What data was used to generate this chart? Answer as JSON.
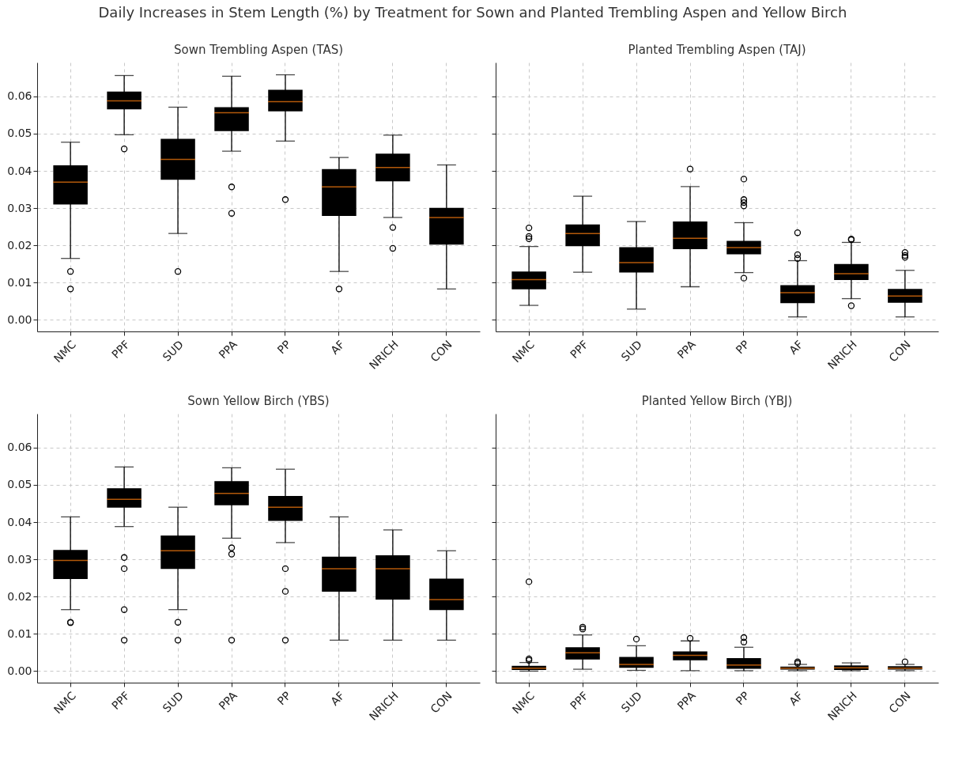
{
  "chart_data": [
    {
      "type": "box",
      "title": "Sown Trembling Aspen (TAS)",
      "annotations": [
        "Daily Increases in Stem Length (%) by Treatment for Sown and Planted Trembling Aspen and Yellow Birch"
      ],
      "color": "#000000",
      "categories": [
        "NMC",
        "PPF",
        "SUD",
        "PPA",
        "PP",
        "AF",
        "NRICH",
        "CON"
      ],
      "ylim": [
        -0.0031,
        0.0691
      ],
      "yticks": [
        {
          "value": 0,
          "label": "0.00"
        },
        0.01,
        0.02,
        0.03,
        0.04,
        0.05,
        0.06
      ],
      "grid": true,
      "marker": "circle",
      "boxes": [
        {
          "low": 0.0165,
          "q1": 0.031,
          "median": 0.037,
          "q3": 0.0415,
          "high": 0.0477,
          "outliers": [
            0.013,
            0.0083
          ]
        },
        {
          "low": 0.0497,
          "q1": 0.0565,
          "median": 0.0588,
          "q3": 0.0613,
          "high": 0.0656,
          "outliers": [
            0.0459
          ]
        },
        {
          "low": 0.0232,
          "q1": 0.0376,
          "median": 0.0431,
          "q3": 0.0486,
          "high": 0.0571,
          "outliers": [
            0.013
          ]
        },
        {
          "low": 0.0453,
          "q1": 0.0507,
          "median": 0.0556,
          "q3": 0.0571,
          "high": 0.0654,
          "outliers": [
            0.0357,
            0.0286
          ]
        },
        {
          "low": 0.048,
          "q1": 0.056,
          "median": 0.0586,
          "q3": 0.0618,
          "high": 0.0658,
          "outliers": [
            0.0323
          ]
        },
        {
          "low": 0.013,
          "q1": 0.0279,
          "median": 0.0357,
          "q3": 0.0405,
          "high": 0.0436,
          "outliers": [
            0.0083
          ]
        },
        {
          "low": 0.0275,
          "q1": 0.0372,
          "median": 0.0409,
          "q3": 0.0446,
          "high": 0.0496,
          "outliers": [
            0.0248,
            0.0192
          ]
        },
        {
          "low": 0.0083,
          "q1": 0.0202,
          "median": 0.0275,
          "q3": 0.0301,
          "high": 0.0416
        }
      ]
    },
    {
      "type": "box",
      "title": "Planted Trembling Aspen (TAJ)",
      "color": "#000000",
      "categories": [
        "NMC",
        "PPF",
        "SUD",
        "PPA",
        "PP",
        "AF",
        "NRICH",
        "CON"
      ],
      "ylim": [
        -0.0031,
        0.0691
      ],
      "yticks": [
        0,
        0.01,
        0.02,
        0.03,
        0.04,
        0.05,
        0.06
      ],
      "grid": true,
      "marker": "circle",
      "tick_labels": "x",
      "boxes": [
        {
          "low": 0.0039,
          "q1": 0.0082,
          "median": 0.0108,
          "q3": 0.013,
          "high": 0.0197,
          "outliers": [
            0.0247,
            0.0224,
            0.0218
          ]
        },
        {
          "low": 0.0128,
          "q1": 0.0198,
          "median": 0.0232,
          "q3": 0.0256,
          "high": 0.0332
        },
        {
          "low": 0.0029,
          "q1": 0.0127,
          "median": 0.0154,
          "q3": 0.0195,
          "high": 0.0264
        },
        {
          "low": 0.0089,
          "q1": 0.019,
          "median": 0.0219,
          "q3": 0.0264,
          "high": 0.0358,
          "outliers": [
            0.0405
          ]
        },
        {
          "low": 0.0127,
          "q1": 0.0176,
          "median": 0.0194,
          "q3": 0.0212,
          "high": 0.0261,
          "outliers": [
            0.0378,
            0.0323,
            0.0315,
            0.0306,
            0.0112
          ]
        },
        {
          "low": 0.0008,
          "q1": 0.0045,
          "median": 0.0073,
          "q3": 0.0093,
          "high": 0.0159,
          "outliers": [
            0.0234,
            0.0175,
            0.0165
          ]
        },
        {
          "low": 0.0057,
          "q1": 0.0107,
          "median": 0.0124,
          "q3": 0.015,
          "high": 0.0208,
          "outliers": [
            0.0217,
            0.0215,
            0.0038
          ]
        },
        {
          "low": 0.0008,
          "q1": 0.0046,
          "median": 0.0064,
          "q3": 0.0083,
          "high": 0.0133,
          "outliers": [
            0.0181,
            0.0173,
            0.0168
          ]
        }
      ]
    },
    {
      "type": "box",
      "title": "Sown Yellow Birch (YBS)",
      "color": "#000000",
      "categories": [
        "NMC",
        "PPF",
        "SUD",
        "PPA",
        "PP",
        "AF",
        "NRICH",
        "CON"
      ],
      "ylim": [
        -0.0031,
        0.0691
      ],
      "yticks": [
        {
          "value": 0,
          "label": "0.00"
        },
        0.01,
        0.02,
        0.03,
        0.04,
        0.05,
        0.06
      ],
      "grid": true,
      "marker": "circle",
      "boxes": [
        {
          "low": 0.0165,
          "q1": 0.0247,
          "median": 0.0297,
          "q3": 0.0325,
          "high": 0.0414,
          "outliers": [
            0.0131,
            0.013
          ]
        },
        {
          "low": 0.0388,
          "q1": 0.0439,
          "median": 0.0461,
          "q3": 0.0491,
          "high": 0.0548,
          "outliers": [
            0.0305,
            0.0275,
            0.0165,
            0.0083
          ]
        },
        {
          "low": 0.0165,
          "q1": 0.0274,
          "median": 0.0323,
          "q3": 0.0364,
          "high": 0.044,
          "outliers": [
            0.0131,
            0.0083
          ]
        },
        {
          "low": 0.0357,
          "q1": 0.0445,
          "median": 0.0477,
          "q3": 0.051,
          "high": 0.0546,
          "outliers": [
            0.0331,
            0.0314,
            0.0083
          ]
        },
        {
          "low": 0.0345,
          "q1": 0.0403,
          "median": 0.044,
          "q3": 0.047,
          "high": 0.0542,
          "outliers": [
            0.0275,
            0.0214,
            0.0083
          ]
        },
        {
          "low": 0.0083,
          "q1": 0.0213,
          "median": 0.0275,
          "q3": 0.0307,
          "high": 0.0414
        },
        {
          "low": 0.0083,
          "q1": 0.0192,
          "median": 0.0275,
          "q3": 0.0311,
          "high": 0.0379
        },
        {
          "low": 0.0083,
          "q1": 0.0164,
          "median": 0.0192,
          "q3": 0.0248,
          "high": 0.0323
        }
      ]
    },
    {
      "type": "box",
      "title": "Planted Yellow Birch (YBJ)",
      "color": "#000000",
      "categories": [
        "NMC",
        "PPF",
        "SUD",
        "PPA",
        "PP",
        "AF",
        "NRICH",
        "CON"
      ],
      "ylim": [
        -0.0031,
        0.0691
      ],
      "yticks": [
        0,
        0.01,
        0.02,
        0.03,
        0.04,
        0.05,
        0.06
      ],
      "grid": true,
      "marker": "circle",
      "tick_labels": "x",
      "boxes": [
        {
          "low": 0.0,
          "q1": 0.0003,
          "median": 0.0008,
          "q3": 0.0014,
          "high": 0.0023,
          "outliers": [
            0.024,
            0.0033,
            0.0029
          ]
        },
        {
          "low": 0.0005,
          "q1": 0.0031,
          "median": 0.0049,
          "q3": 0.0064,
          "high": 0.0097,
          "outliers": [
            0.0118,
            0.0113
          ]
        },
        {
          "low": 0.0002,
          "q1": 0.0009,
          "median": 0.0018,
          "q3": 0.0038,
          "high": 0.0068,
          "outliers": [
            0.0086
          ]
        },
        {
          "low": 0.0001,
          "q1": 0.0029,
          "median": 0.0042,
          "q3": 0.0053,
          "high": 0.0081,
          "outliers": [
            0.0088
          ]
        },
        {
          "low": 0.0001,
          "q1": 0.0006,
          "median": 0.0016,
          "q3": 0.0035,
          "high": 0.0064,
          "outliers": [
            0.009,
            0.0078
          ]
        },
        {
          "low": 0.0001,
          "q1": 0.0004,
          "median": 0.0008,
          "q3": 0.0012,
          "high": 0.0018,
          "outliers": [
            0.0025,
            0.0021
          ]
        },
        {
          "low": 0.0001,
          "q1": 0.0003,
          "median": 0.0009,
          "q3": 0.0015,
          "high": 0.0022
        },
        {
          "low": 0.0001,
          "q1": 0.0004,
          "median": 0.0008,
          "q3": 0.0013,
          "high": 0.0018,
          "outliers": [
            0.0025
          ]
        }
      ]
    }
  ]
}
